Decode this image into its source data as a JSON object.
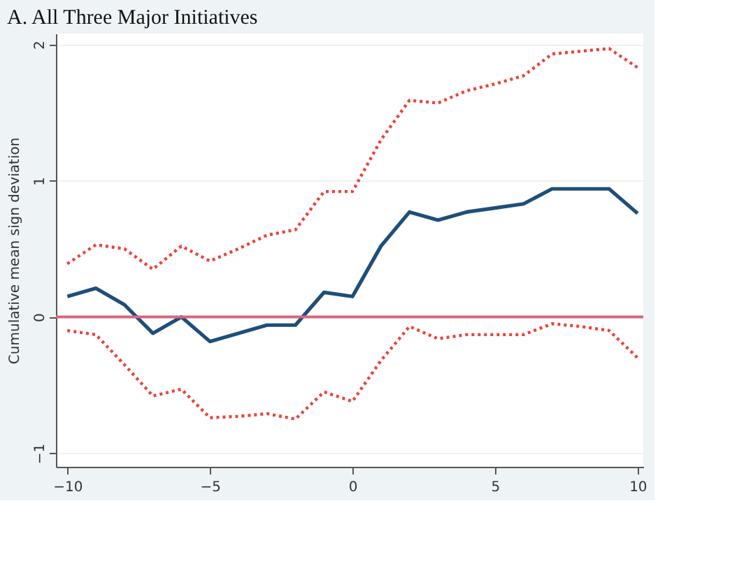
{
  "chart_data": {
    "type": "line",
    "title": "A. All Three Major Initiatives",
    "ylabel": "Cumulative mean sign deviation",
    "x": [
      -10,
      -9,
      -8,
      -7,
      -6,
      -5,
      -4,
      -3,
      -2,
      -1,
      0,
      1,
      2,
      3,
      4,
      5,
      6,
      7,
      8,
      9,
      10
    ],
    "xlim": [
      -10.4,
      10.2
    ],
    "xticks": [
      -10,
      -5,
      0,
      5,
      10
    ],
    "ylim": [
      -1.1,
      2.08
    ],
    "yticks": [
      -1,
      0,
      1,
      2
    ],
    "grid": "y",
    "marker": "none",
    "series": [
      {
        "color": "#1f4e79",
        "line_style": "solid",
        "values": [
          0.15,
          0.21,
          0.09,
          -0.12,
          0.0,
          -0.18,
          -0.12,
          -0.06,
          -0.06,
          0.18,
          0.15,
          0.52,
          0.77,
          0.71,
          0.77,
          0.8,
          0.83,
          0.94,
          0.94,
          0.94,
          0.76
        ]
      },
      {
        "color": "#e8443a",
        "line_style": "dotted",
        "values": [
          0.39,
          0.53,
          0.5,
          0.35,
          0.52,
          0.41,
          0.5,
          0.6,
          0.64,
          0.92,
          0.92,
          1.3,
          1.59,
          1.57,
          1.66,
          1.71,
          1.77,
          1.93,
          1.95,
          1.97,
          1.83
        ]
      },
      {
        "color": "#e8443a",
        "line_style": "dotted",
        "values": [
          -0.1,
          -0.13,
          -0.35,
          -0.58,
          -0.53,
          -0.74,
          -0.73,
          -0.71,
          -0.75,
          -0.55,
          -0.62,
          -0.32,
          -0.07,
          -0.16,
          -0.13,
          -0.13,
          -0.13,
          -0.05,
          -0.07,
          -0.1,
          -0.3
        ]
      }
    ],
    "ref_lines": [
      {
        "axis": "y",
        "value": 0,
        "color": "#d9667f",
        "line_style": "solid"
      }
    ]
  }
}
